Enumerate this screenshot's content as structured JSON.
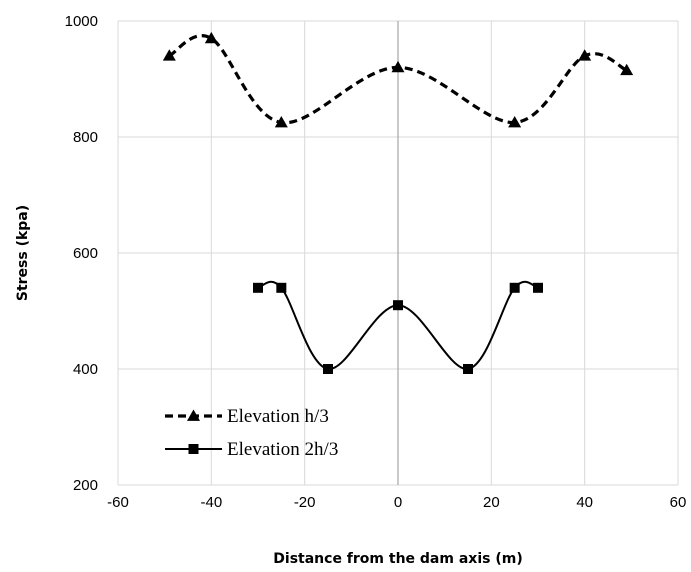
{
  "chart_data": {
    "type": "line",
    "title": "",
    "xlabel": "Distance from the dam axis (m)",
    "ylabel": "Stress (kpa)",
    "xlim": [
      -60,
      60
    ],
    "ylim": [
      200,
      1000
    ],
    "x_ticks": [
      -60,
      -40,
      -20,
      0,
      20,
      40,
      60
    ],
    "y_ticks": [
      200,
      400,
      600,
      800,
      1000
    ],
    "grid": true,
    "smoothed": true,
    "legend_position": "bottom-left",
    "series": [
      {
        "name": "Elevation h/3",
        "line_style": "dashed",
        "marker": "triangle",
        "color": "#000000",
        "x": [
          -49,
          -40,
          -25,
          0,
          25,
          40,
          49
        ],
        "y": [
          940,
          970,
          825,
          920,
          825,
          940,
          915
        ]
      },
      {
        "name": "Elevation 2h/3",
        "line_style": "solid",
        "marker": "square",
        "color": "#000000",
        "x": [
          -30,
          -25,
          -15,
          0,
          15,
          25,
          30
        ],
        "y": [
          540,
          540,
          400,
          510,
          400,
          540,
          540
        ]
      }
    ]
  }
}
